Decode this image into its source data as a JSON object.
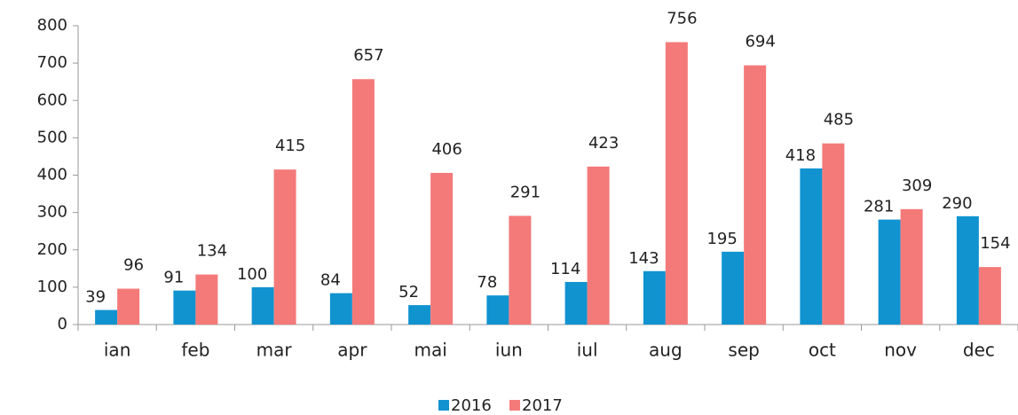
{
  "chart_data": {
    "type": "bar",
    "categories": [
      "ian",
      "feb",
      "mar",
      "apr",
      "mai",
      "iun",
      "iul",
      "aug",
      "sep",
      "oct",
      "nov",
      "dec"
    ],
    "series": [
      {
        "name": "2016",
        "color": "#1193d0",
        "values": [
          39,
          91,
          100,
          84,
          52,
          78,
          114,
          143,
          195,
          418,
          281,
          290
        ]
      },
      {
        "name": "2017",
        "color": "#f47a7a",
        "values": [
          96,
          134,
          415,
          657,
          406,
          291,
          423,
          756,
          694,
          485,
          309,
          154
        ]
      }
    ],
    "ylim": [
      0,
      800
    ],
    "yticks": [
      0,
      100,
      200,
      300,
      400,
      500,
      600,
      700,
      800
    ],
    "grid": false,
    "legend": "bottom"
  }
}
